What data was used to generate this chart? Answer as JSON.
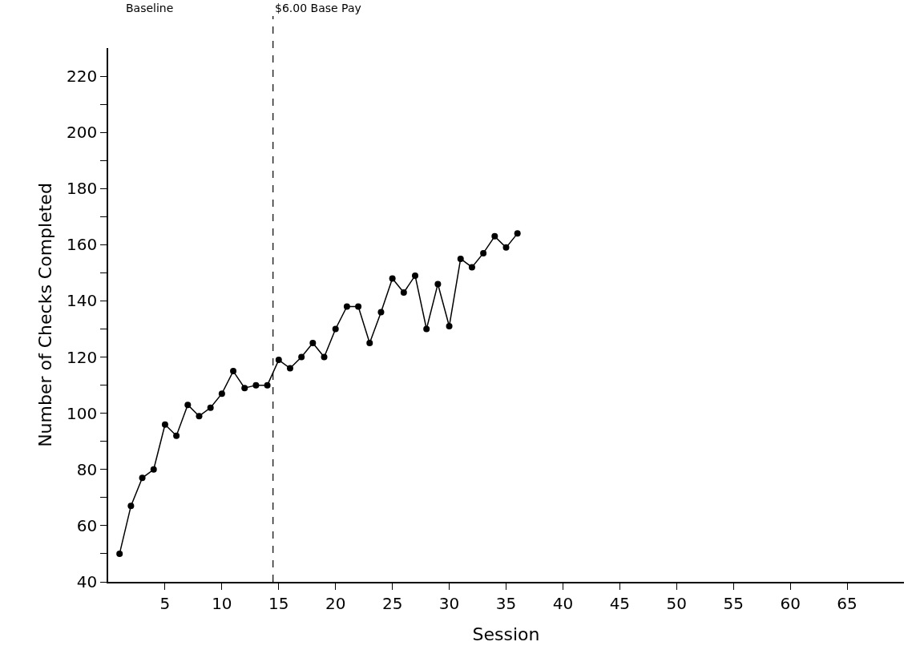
{
  "chart_data": {
    "type": "line",
    "xlabel": "Session",
    "ylabel": "Number of Checks Completed",
    "x": [
      1,
      2,
      3,
      4,
      5,
      6,
      7,
      8,
      9,
      10,
      11,
      12,
      13,
      14,
      15,
      16,
      17,
      18,
      19,
      20,
      21,
      22,
      23,
      24,
      25,
      26,
      27,
      28,
      29,
      30,
      31,
      32,
      33,
      34,
      35,
      36
    ],
    "series": [
      {
        "color": "#000000",
        "values": [
          50,
          67,
          77,
          80,
          96,
          92,
          103,
          99,
          102,
          107,
          115,
          109,
          110,
          110,
          119,
          116,
          120,
          125,
          120,
          130,
          138,
          138,
          125,
          136,
          148,
          143,
          149,
          130,
          146,
          131,
          155,
          152,
          157,
          163,
          159,
          164
        ]
      }
    ],
    "xlim": [
      0,
      70
    ],
    "xticks": [
      5,
      10,
      15,
      20,
      25,
      30,
      35,
      40,
      45,
      50,
      55,
      60,
      65
    ],
    "ylim": [
      40,
      230
    ],
    "yticks": [
      40,
      {
        "value": 50,
        "label": null
      },
      60,
      {
        "value": 70,
        "label": null
      },
      80,
      {
        "value": 90,
        "label": null
      },
      100,
      {
        "value": 110,
        "label": null
      },
      120,
      {
        "value": 130,
        "label": null
      },
      140,
      {
        "value": 150,
        "label": null
      },
      160,
      {
        "value": 170,
        "label": null
      },
      180,
      {
        "value": 190,
        "label": null
      },
      200,
      {
        "value": 210,
        "label": null
      },
      220
    ],
    "ref_lines": [
      {
        "axis": "x",
        "value": 14.5,
        "label": "$6.00 Base Pay",
        "line_style": "dashed",
        "color": "#000000"
      }
    ],
    "annotations": [
      "Baseline"
    ],
    "marker": "circle",
    "line_style": "solid"
  }
}
